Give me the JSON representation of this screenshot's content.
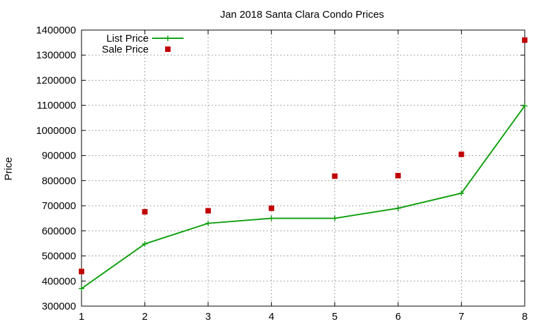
{
  "chart_data": {
    "type": "line",
    "title": "Jan 2018 Santa Clara Condo Prices",
    "xlabel": "",
    "ylabel": "Price",
    "x": [
      1,
      2,
      3,
      4,
      5,
      6,
      7,
      8
    ],
    "xlim": [
      1,
      8
    ],
    "ylim": [
      300000,
      1400000
    ],
    "xticks": [
      1,
      2,
      3,
      4,
      5,
      6,
      7,
      8
    ],
    "yticks": [
      300000,
      400000,
      500000,
      600000,
      700000,
      800000,
      900000,
      1000000,
      1100000,
      1200000,
      1300000,
      1400000
    ],
    "grid": true,
    "legend_position": "top-left",
    "series": [
      {
        "name": "List Price",
        "style": "line+cross",
        "color": "#11a011",
        "values": [
          370000,
          548000,
          630000,
          650000,
          650000,
          690000,
          750000,
          1098000
        ]
      },
      {
        "name": "Sale Price",
        "style": "square",
        "color": "#c00000",
        "values": [
          438000,
          676000,
          680000,
          690000,
          818000,
          820000,
          905000,
          1360000
        ]
      }
    ]
  }
}
